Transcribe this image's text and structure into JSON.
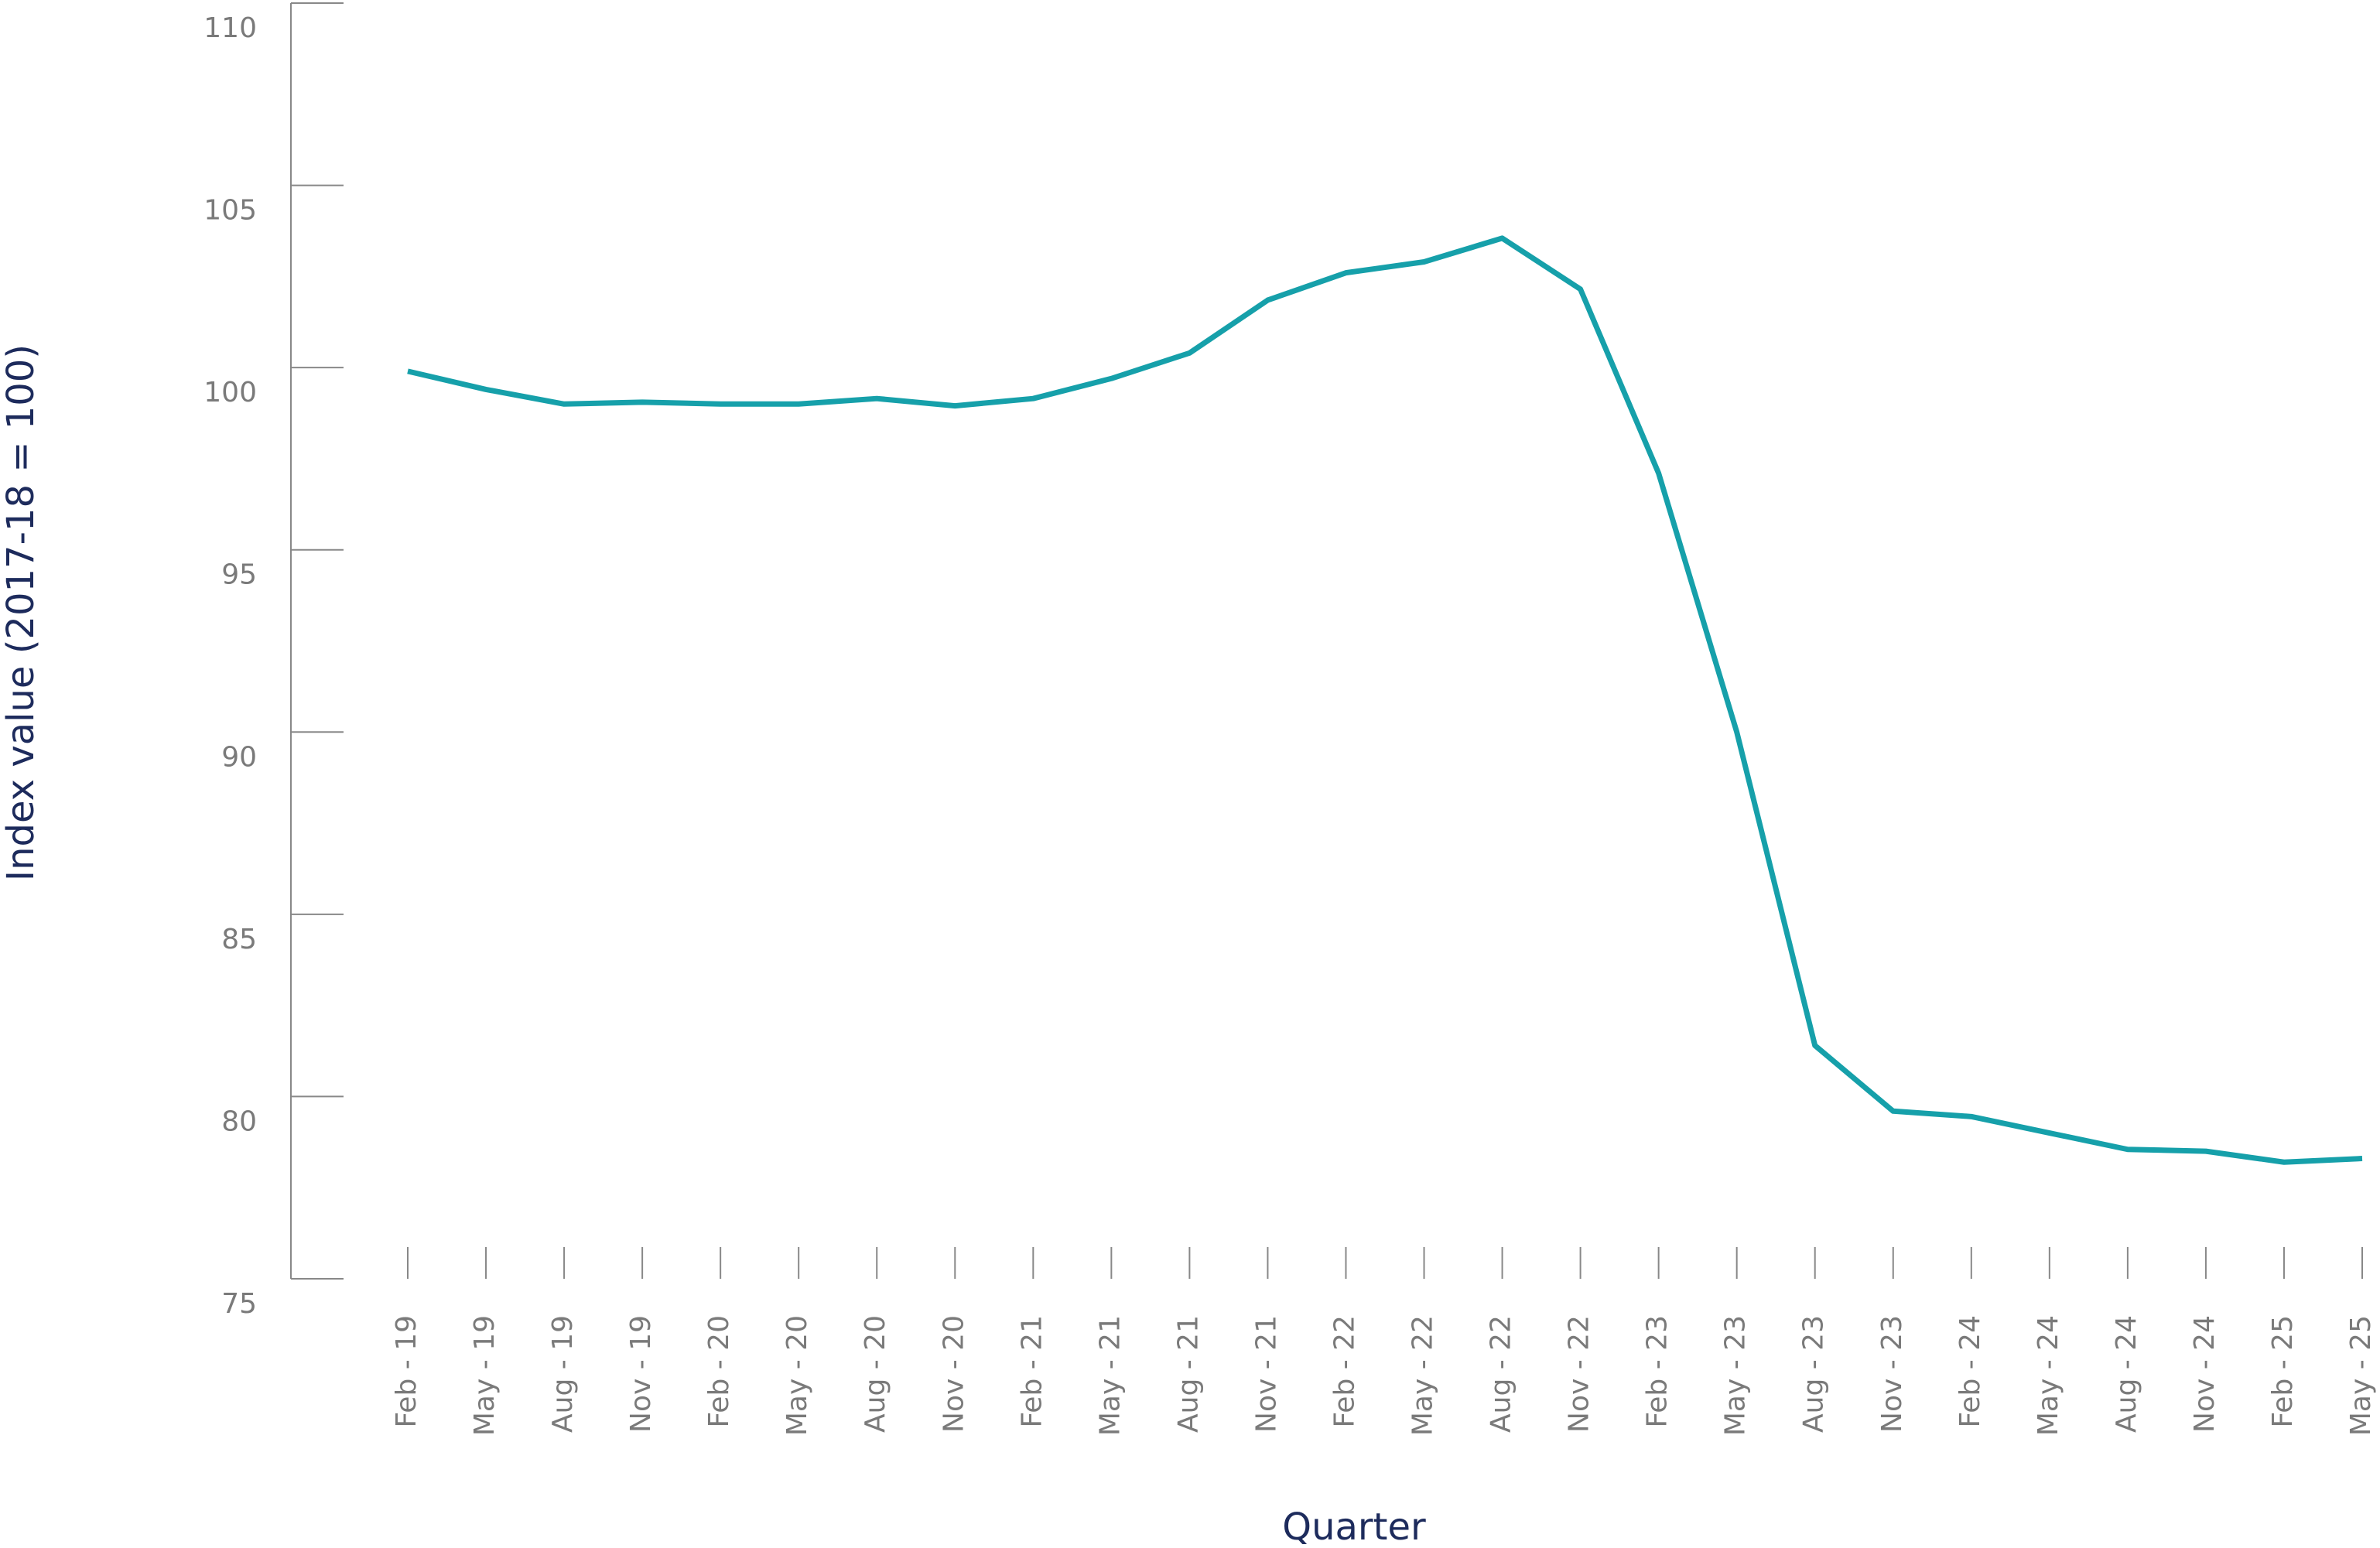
{
  "chart_data": {
    "type": "line",
    "x_label": "Quarter",
    "y_label": "Index value (2017-18 = 100)",
    "categories": [
      "Feb - 19",
      "May - 19",
      "Aug - 19",
      "Nov - 19",
      "Feb - 20",
      "May - 20",
      "Aug - 20",
      "Nov - 20",
      "Feb - 21",
      "May - 21",
      "Aug - 21",
      "Nov - 21",
      "Feb - 22",
      "May - 22",
      "Aug - 22",
      "Nov - 22",
      "Feb - 23",
      "May - 23",
      "Aug - 23",
      "Nov - 23",
      "Feb - 24",
      "May - 24",
      "Aug - 24",
      "Nov - 24",
      "Feb - 25",
      "May - 25"
    ],
    "series": [
      {
        "color": "#16a0aa",
        "values": [
          99.9,
          99.4,
          99.0,
          99.05,
          99.0,
          99.0,
          99.15,
          98.95,
          99.15,
          99.7,
          100.4,
          101.85,
          102.6,
          102.9,
          103.55,
          102.15,
          97.1,
          90.0,
          81.4,
          79.6,
          79.45,
          79.0,
          78.55,
          78.5,
          78.2,
          78.3
        ]
      }
    ],
    "ylim": [
      75,
      110
    ],
    "yticks": [
      75,
      80,
      85,
      90,
      95,
      100,
      105,
      110
    ],
    "grid": false
  }
}
